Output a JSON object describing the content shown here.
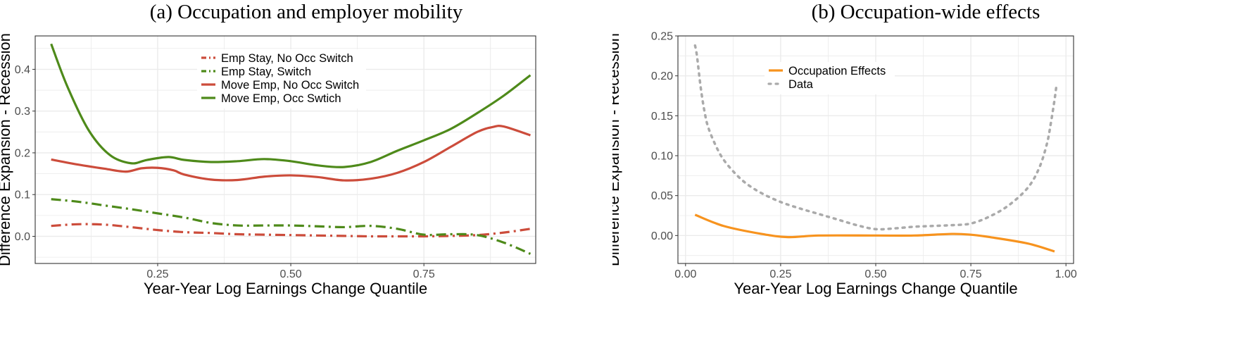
{
  "chart_data": [
    {
      "type": "line",
      "title": "(a) Occupation and employer mobility",
      "xlabel": "Year-Year Log Earnings Change Quantile",
      "ylabel": "Difference Expansion - Recession",
      "xlim": [
        0.02,
        0.96
      ],
      "ylim": [
        -0.065,
        0.48
      ],
      "xticks": [
        0.25,
        0.5,
        0.75
      ],
      "xtick_labels": [
        "0.25",
        "0.50",
        "0.75"
      ],
      "yticks": [
        0.0,
        0.1,
        0.2,
        0.3,
        0.4
      ],
      "ytick_labels": [
        "0.0",
        "0.1",
        "0.2",
        "0.3",
        "0.4"
      ],
      "grid": true,
      "legend_position": "top-center",
      "series": [
        {
          "name": "Emp Stay, No Occ Switch",
          "color": "#cc4c3b",
          "dash": "dotdash",
          "x": [
            0.05,
            0.1,
            0.15,
            0.2,
            0.25,
            0.3,
            0.35,
            0.4,
            0.45,
            0.5,
            0.55,
            0.6,
            0.65,
            0.7,
            0.75,
            0.8,
            0.85,
            0.9,
            0.95
          ],
          "y": [
            0.025,
            0.029,
            0.028,
            0.022,
            0.015,
            0.01,
            0.008,
            0.005,
            0.004,
            0.003,
            0.002,
            0.001,
            0.0,
            0.0,
            0.0,
            0.001,
            0.003,
            0.009,
            0.018
          ]
        },
        {
          "name": "Emp Stay, Switch",
          "color": "#4e8a1a",
          "dash": "dotdash",
          "x": [
            0.05,
            0.1,
            0.15,
            0.2,
            0.25,
            0.3,
            0.35,
            0.4,
            0.45,
            0.5,
            0.55,
            0.6,
            0.65,
            0.7,
            0.75,
            0.8,
            0.85,
            0.9,
            0.95
          ],
          "y": [
            0.089,
            0.083,
            0.074,
            0.065,
            0.055,
            0.045,
            0.032,
            0.026,
            0.026,
            0.026,
            0.024,
            0.022,
            0.025,
            0.018,
            0.004,
            0.005,
            0.003,
            -0.015,
            -0.042
          ]
        },
        {
          "name": "Move Emp, No Occ Switch",
          "color": "#cc4c3b",
          "dash": "solid",
          "x": [
            0.05,
            0.1,
            0.15,
            0.19,
            0.22,
            0.25,
            0.28,
            0.3,
            0.35,
            0.4,
            0.45,
            0.5,
            0.55,
            0.6,
            0.65,
            0.7,
            0.75,
            0.8,
            0.85,
            0.88,
            0.9,
            0.95
          ],
          "y": [
            0.184,
            0.172,
            0.162,
            0.155,
            0.163,
            0.164,
            0.158,
            0.148,
            0.136,
            0.135,
            0.143,
            0.146,
            0.142,
            0.134,
            0.138,
            0.152,
            0.178,
            0.214,
            0.25,
            0.262,
            0.263,
            0.242
          ]
        },
        {
          "name": "Move Emp, Occ Swtich",
          "color": "#4e8a1a",
          "dash": "solid",
          "x": [
            0.05,
            0.08,
            0.12,
            0.16,
            0.2,
            0.23,
            0.27,
            0.3,
            0.35,
            0.4,
            0.45,
            0.5,
            0.55,
            0.6,
            0.65,
            0.7,
            0.75,
            0.8,
            0.85,
            0.9,
            0.95
          ],
          "y": [
            0.461,
            0.36,
            0.255,
            0.195,
            0.175,
            0.183,
            0.19,
            0.183,
            0.178,
            0.18,
            0.185,
            0.18,
            0.17,
            0.166,
            0.178,
            0.205,
            0.23,
            0.257,
            0.295,
            0.337,
            0.386
          ]
        }
      ]
    },
    {
      "type": "line",
      "title": "(b) Occupation-wide effects",
      "xlabel": "Year-Year Log Earnings Change Quantile",
      "ylabel": "Difference Expansion - Recession",
      "xlim": [
        -0.02,
        1.02
      ],
      "ylim": [
        -0.035,
        0.25
      ],
      "xticks": [
        0.0,
        0.25,
        0.5,
        0.75,
        1.0
      ],
      "xtick_labels": [
        "0.00",
        "0.25",
        "0.50",
        "0.75",
        "1.00"
      ],
      "yticks": [
        0.0,
        0.05,
        0.1,
        0.15,
        0.2,
        0.25
      ],
      "ytick_labels": [
        "0.00",
        "0.05",
        "0.10",
        "0.15",
        "0.20",
        "0.25"
      ],
      "grid": true,
      "legend_position": "top-center",
      "series": [
        {
          "name": "Occupation Effects",
          "color": "#f7931e",
          "dash": "solid",
          "x": [
            0.025,
            0.1,
            0.2,
            0.27,
            0.35,
            0.5,
            0.6,
            0.7,
            0.75,
            0.8,
            0.9,
            0.97
          ],
          "y": [
            0.026,
            0.012,
            0.002,
            -0.002,
            0.0,
            0.0,
            0.0,
            0.002,
            0.001,
            -0.002,
            -0.01,
            -0.02
          ]
        },
        {
          "name": "Data",
          "color": "#aaaaaa",
          "dash": "dotted",
          "x": [
            0.025,
            0.03,
            0.04,
            0.05,
            0.06,
            0.08,
            0.1,
            0.13,
            0.16,
            0.2,
            0.25,
            0.3,
            0.35,
            0.4,
            0.45,
            0.5,
            0.55,
            0.6,
            0.65,
            0.7,
            0.75,
            0.8,
            0.85,
            0.9,
            0.93,
            0.95,
            0.96,
            0.97,
            0.975
          ],
          "y": [
            0.238,
            0.225,
            0.185,
            0.155,
            0.135,
            0.112,
            0.095,
            0.078,
            0.065,
            0.053,
            0.042,
            0.034,
            0.027,
            0.02,
            0.013,
            0.008,
            0.009,
            0.011,
            0.012,
            0.013,
            0.015,
            0.024,
            0.038,
            0.06,
            0.085,
            0.115,
            0.14,
            0.17,
            0.188
          ]
        }
      ]
    }
  ],
  "colors": {
    "red": "#cc4c3b",
    "green": "#4e8a1a",
    "orange": "#f7931e",
    "gray": "#aaaaaa",
    "grid": "#ebebeb",
    "frame": "#333333"
  }
}
